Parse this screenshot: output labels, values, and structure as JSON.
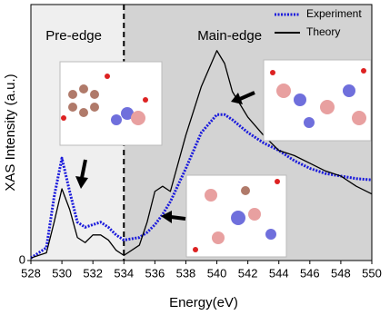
{
  "chart_data": {
    "type": "line",
    "xlabel": "Energy(eV)",
    "ylabel": "XAS Intensity (a.u.)",
    "xlim": [
      528,
      550
    ],
    "xticks": [
      528,
      530,
      532,
      534,
      536,
      538,
      540,
      542,
      544,
      546,
      548,
      550
    ],
    "ylim": [
      0,
      10
    ],
    "yticks": [
      0
    ],
    "regions": [
      {
        "label": "Pre-edge",
        "from": 528,
        "to": 534,
        "color": "#efefef"
      },
      {
        "label": "Main-edge",
        "from": 534,
        "to": 550,
        "color": "#d3d3d3"
      }
    ],
    "legend": "upper right",
    "x": [
      528,
      529,
      529.5,
      530,
      530.5,
      531,
      531.5,
      532,
      532.5,
      533,
      533.5,
      534,
      535,
      535.5,
      536,
      536.5,
      537,
      538,
      539,
      540,
      540.5,
      541,
      542,
      543,
      544,
      545,
      546,
      547,
      548,
      549,
      550
    ],
    "series": [
      {
        "name": "Experiment",
        "color": "#1a1adc",
        "style": "dotted",
        "values": [
          0.1,
          0.5,
          2.5,
          4.0,
          2.7,
          1.5,
          1.3,
          1.4,
          1.5,
          1.3,
          1.0,
          0.8,
          0.9,
          1.1,
          1.4,
          1.8,
          2.3,
          3.6,
          5.0,
          5.7,
          5.7,
          5.5,
          5.0,
          4.6,
          4.3,
          3.9,
          3.6,
          3.4,
          3.3,
          3.2,
          3.15
        ]
      },
      {
        "name": "Theory",
        "color": "#000000",
        "style": "solid",
        "values": [
          0.1,
          0.3,
          1.5,
          2.8,
          2.0,
          0.9,
          0.7,
          1.0,
          1.0,
          0.8,
          0.4,
          0.2,
          0.6,
          1.5,
          2.7,
          2.9,
          2.7,
          4.9,
          6.8,
          8.2,
          7.7,
          6.6,
          5.6,
          4.9,
          4.3,
          4.1,
          3.8,
          3.5,
          3.3,
          2.9,
          2.6
        ]
      }
    ]
  }
}
